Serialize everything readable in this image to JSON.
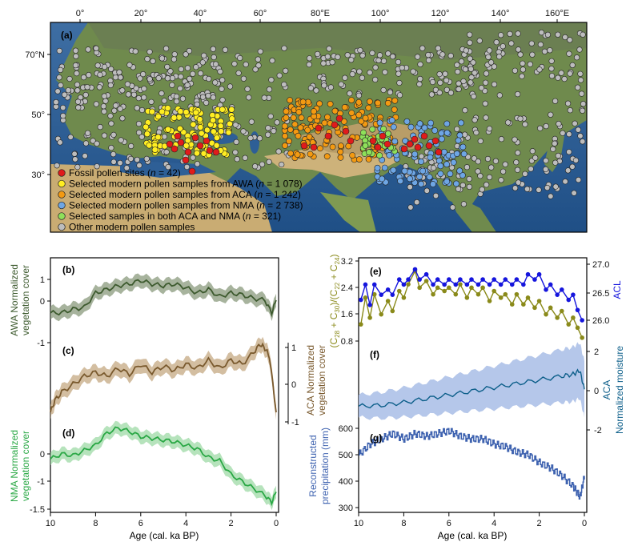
{
  "map": {
    "panel_label": "(a)",
    "lon_ticks": [
      "0°",
      "20°",
      "40°",
      "60°",
      "80°E",
      "100°",
      "120°",
      "140°",
      "160°E"
    ],
    "lat_ticks": [
      "70°N",
      "50°",
      "30°"
    ],
    "legend": [
      {
        "prefix": "Fossil pollen sites (",
        "n": "n",
        "suffix": " = 42)",
        "color": "#e01b1b"
      },
      {
        "prefix": "Selected modern pollen samples from AWA (",
        "n": "n",
        "suffix": " = 1 078)",
        "color": "#ffee22"
      },
      {
        "prefix": "Selected modern pollen samples from ACA (",
        "n": "n",
        "suffix": " = 1 242)",
        "color": "#f39a12"
      },
      {
        "prefix": "Selected modern pollen samples from NMA (",
        "n": "n",
        "suffix": " = 2 738)",
        "color": "#6ea6e4"
      },
      {
        "prefix": "Selected samples in both ACA and NMA (",
        "n": "n",
        "suffix": " = 321)",
        "color": "#8ee05a"
      },
      {
        "prefix": "Other modern pollen samples",
        "n": "",
        "suffix": "",
        "color": "#bdbdbd"
      }
    ]
  },
  "colors": {
    "awa": "#3d5a2e",
    "awa_band": "#8a9a7c",
    "aca": "#7a5a2e",
    "aca_band": "#c4a882",
    "nma": "#2aa845",
    "nma_band": "#9ed9a6",
    "chain": "#8a8a1a",
    "acl": "#1515dd",
    "moist": "#0d5f8a",
    "moist_band": "#a8bde6",
    "precip": "#3f63b0"
  },
  "chart_data": [
    {
      "type": "line",
      "panel": "(b)",
      "ylabel_lines": [
        "AWA Normalized",
        "vegetation cover"
      ],
      "x_ticks": [
        "10",
        "8",
        "6",
        "4",
        "2",
        "0"
      ],
      "xlim": [
        10,
        0
      ],
      "ylim": [
        -1.5,
        1
      ],
      "y_ticks": [
        "1",
        "0",
        "-1"
      ],
      "series": [
        {
          "x": [
            10,
            9.5,
            9,
            8.5,
            8,
            7.5,
            7,
            6.5,
            6,
            5.5,
            5,
            4.5,
            4,
            3.5,
            3,
            2.5,
            2,
            1.5,
            1,
            0.5,
            0.2,
            0
          ],
          "y": [
            -0.35,
            -0.35,
            -0.25,
            -0.2,
            0.2,
            0.3,
            0.4,
            0.45,
            0.55,
            0.45,
            0.4,
            0.45,
            0.35,
            0.2,
            0.3,
            0.1,
            0.2,
            0.15,
            0.05,
            0.0,
            -0.35,
            0.0
          ]
        }
      ]
    },
    {
      "type": "line",
      "panel": "(c)",
      "ylabel_lines": [
        "ACA Normalized",
        "vegetation cover"
      ],
      "x_ticks": [
        "10",
        "8",
        "6",
        "4",
        "2",
        "0"
      ],
      "xlim": [
        10,
        0
      ],
      "ylim": [
        -1,
        1
      ],
      "y_ticks": [
        "1",
        "0",
        "-1"
      ],
      "series": [
        {
          "x": [
            10,
            9.8,
            9.5,
            9,
            8.5,
            8,
            7.5,
            7,
            6.5,
            6,
            5.5,
            5,
            4.5,
            4,
            3.5,
            3,
            2.5,
            2,
            1.5,
            1,
            0.7,
            0.5,
            0.3,
            0
          ],
          "y": [
            -0.8,
            -0.5,
            -0.3,
            -0.1,
            0.1,
            0.2,
            0.1,
            0.3,
            0.15,
            0.4,
            0.2,
            0.35,
            0.25,
            0.4,
            0.3,
            0.5,
            0.3,
            0.5,
            0.4,
            0.7,
            0.9,
            0.8,
            0.6,
            -0.8
          ]
        }
      ]
    },
    {
      "type": "line",
      "panel": "(d)",
      "ylabel_lines": [
        "NMA Normalized",
        "vegetation cover"
      ],
      "x_ticks": [
        "10",
        "8",
        "6",
        "4",
        "2",
        "0"
      ],
      "xlim": [
        10,
        0
      ],
      "ylim": [
        -1.5,
        1
      ],
      "y_ticks": [
        "0",
        "-1",
        "-1.5"
      ],
      "series": [
        {
          "x": [
            10,
            9.5,
            9,
            8.5,
            8,
            7.5,
            7,
            6.5,
            6,
            5.5,
            5,
            4.5,
            4,
            3.5,
            3,
            2.5,
            2,
            1.5,
            1,
            0.5,
            0.2,
            0
          ],
          "y": [
            -0.05,
            0.1,
            0.05,
            0.2,
            0.35,
            0.7,
            0.85,
            0.75,
            0.6,
            0.55,
            0.5,
            0.45,
            0.35,
            0.25,
            0.0,
            -0.1,
            -0.5,
            -0.7,
            -0.9,
            -1.1,
            -1.3,
            -1.0
          ]
        }
      ]
    },
    {
      "type": "scatter",
      "panel": "(e)",
      "ylabel_left_lines": [
        "(C",
        "28",
        " + C",
        "30",
        ")/(C",
        "22",
        " + C",
        "24",
        ")"
      ],
      "ylabel_right": "ACL",
      "x_ticks": [
        "10",
        "8",
        "6",
        "4",
        "2",
        "0"
      ],
      "xlim": [
        10,
        0
      ],
      "y_left_ticks": [
        "3.2",
        "2.4",
        "1.6",
        "0.8"
      ],
      "ylim_left": [
        0.8,
        3.2
      ],
      "y_right_ticks": [
        "27.0",
        "26.5",
        "26.0"
      ],
      "ylim_right": [
        25.7,
        27.0
      ],
      "series": [
        {
          "x": [
            9.9,
            9.7,
            9.5,
            9.3,
            9.0,
            8.7,
            8.5,
            8.2,
            8.0,
            7.8,
            7.5,
            7.3,
            7.0,
            6.7,
            6.5,
            6.2,
            6.0,
            5.7,
            5.5,
            5.2,
            5.0,
            4.7,
            4.5,
            4.2,
            4.0,
            3.7,
            3.5,
            3.2,
            3.0,
            2.7,
            2.5,
            2.2,
            2.0,
            1.7,
            1.5,
            1.2,
            1.0,
            0.7,
            0.5,
            0.3,
            0.1
          ],
          "y": [
            1.3,
            2.1,
            1.5,
            2.2,
            1.6,
            2.0,
            1.7,
            2.3,
            2.1,
            2.5,
            2.9,
            2.4,
            2.6,
            2.2,
            2.4,
            2.3,
            2.4,
            2.2,
            2.5,
            2.1,
            2.4,
            2.2,
            2.4,
            2.0,
            2.3,
            2.1,
            2.2,
            1.9,
            2.2,
            1.9,
            2.1,
            1.8,
            2.0,
            1.6,
            1.8,
            1.5,
            1.7,
            1.3,
            1.5,
            1.2,
            0.9
          ]
        },
        {
          "x": [
            9.9,
            9.7,
            9.5,
            9.3,
            9.0,
            8.7,
            8.5,
            8.2,
            8.0,
            7.8,
            7.5,
            7.3,
            7.0,
            6.7,
            6.5,
            6.2,
            6.0,
            5.7,
            5.5,
            5.2,
            5.0,
            4.7,
            4.5,
            4.2,
            4.0,
            3.7,
            3.5,
            3.2,
            3.0,
            2.7,
            2.5,
            2.2,
            2.0,
            1.7,
            1.5,
            1.2,
            1.0,
            0.7,
            0.5,
            0.3,
            0.1
          ],
          "y": [
            26.3,
            26.6,
            26.2,
            26.6,
            26.4,
            26.5,
            26.4,
            26.7,
            26.6,
            26.7,
            26.9,
            26.7,
            26.8,
            26.6,
            26.7,
            26.6,
            26.7,
            26.6,
            26.7,
            26.6,
            26.7,
            26.6,
            26.7,
            26.6,
            26.7,
            26.6,
            26.7,
            26.6,
            26.7,
            26.6,
            26.8,
            26.7,
            26.8,
            26.5,
            26.6,
            26.4,
            26.5,
            26.3,
            26.4,
            26.1,
            25.9
          ]
        }
      ]
    },
    {
      "type": "area",
      "panel": "(f)",
      "ylabel_lines": [
        "ACA",
        "Normalized moisture"
      ],
      "x_ticks": [
        "10",
        "8",
        "6",
        "4",
        "2",
        "0"
      ],
      "xlim": [
        10,
        0
      ],
      "ylim": [
        -2.3,
        2.3
      ],
      "y_ticks": [
        "2",
        "0",
        "-2"
      ],
      "series": [
        {
          "x": [
            10,
            9,
            8,
            7,
            6,
            5,
            4,
            3,
            2,
            1,
            0.5,
            0.2,
            0
          ],
          "y": [
            -0.7,
            -0.65,
            -0.5,
            -0.3,
            -0.1,
            0.1,
            0.3,
            0.5,
            0.7,
            0.9,
            1.0,
            1.2,
            0.2
          ]
        }
      ]
    },
    {
      "type": "line",
      "panel": "(g)",
      "ylabel_lines": [
        "Reconstructed",
        "precipitation (mm)"
      ],
      "x_ticks": [
        "10",
        "8",
        "6",
        "4",
        "2",
        "0"
      ],
      "xlim": [
        10,
        0
      ],
      "ylim": [
        300,
        640
      ],
      "y_ticks": [
        "600",
        "500",
        "400",
        "300"
      ],
      "xlabel": "Age (cal. ka BP)",
      "series": [
        {
          "x": [
            10,
            9.5,
            9,
            8.5,
            8,
            7.5,
            7,
            6.5,
            6,
            5.5,
            5,
            4.5,
            4,
            3.5,
            3,
            2.5,
            2,
            1.5,
            1,
            0.5,
            0.2,
            0
          ],
          "y": [
            500,
            540,
            560,
            580,
            560,
            580,
            570,
            580,
            590,
            570,
            560,
            560,
            540,
            530,
            510,
            500,
            470,
            450,
            420,
            380,
            340,
            420
          ]
        }
      ]
    }
  ]
}
